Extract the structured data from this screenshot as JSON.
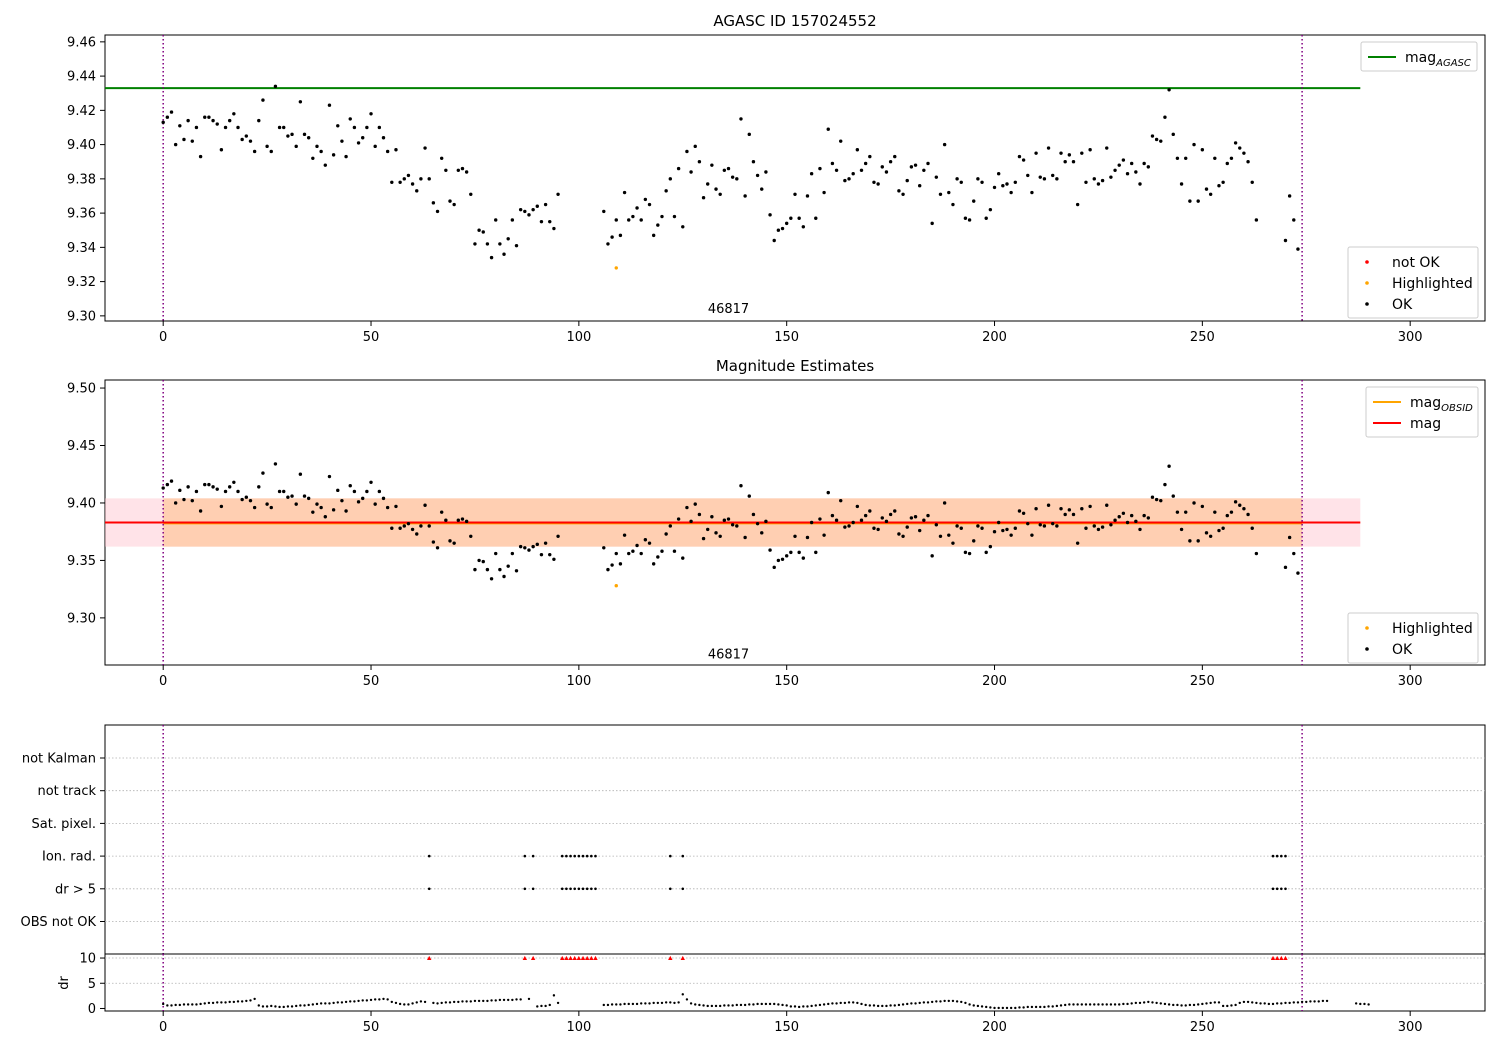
{
  "colors": {
    "ok": "#000000",
    "not_ok": "#ff0000",
    "highlighted": "#ffa500",
    "mag_agasc": "#008000",
    "mag_obsid": "#ffa500",
    "mag": "#ff0000",
    "band_mag": "#ffc0cb",
    "band_obsid": "#ffc8a0",
    "vline": "#800080",
    "grid": "#b0b0b0"
  },
  "chart_data": [
    {
      "id": "top",
      "type": "scatter",
      "title": "AGASC ID 157024552",
      "xlabel": "",
      "ylabel": "",
      "xlim": [
        -14,
        318
      ],
      "ylim": [
        9.297,
        9.464
      ],
      "xticks": [
        0,
        50,
        100,
        150,
        200,
        250,
        300
      ],
      "yticks": [
        9.3,
        9.32,
        9.34,
        9.36,
        9.38,
        9.4,
        9.42,
        9.44,
        9.46
      ],
      "ytick_decimals": 2,
      "obsid_label": "46817",
      "obsid_label_pos": [
        136,
        9.304
      ],
      "vlines": [
        0,
        274
      ],
      "hline": {
        "y": 9.433,
        "x": [
          -14,
          288
        ]
      },
      "legend_top": [
        {
          "label": "mag",
          "sub": "AGASC",
          "kind": "line",
          "color": "#008000"
        }
      ],
      "legend_bottom": [
        {
          "label": "not OK",
          "kind": "dot",
          "color": "#ff0000"
        },
        {
          "label": "Highlighted",
          "kind": "dot",
          "color": "#ffa500"
        },
        {
          "label": "OK",
          "kind": "dot",
          "color": "#000000"
        }
      ],
      "highlighted": [
        [
          109,
          9.328
        ]
      ]
    },
    {
      "id": "mid",
      "type": "scatter",
      "title": "Magnitude Estimates",
      "xlabel": "",
      "ylabel": "",
      "xlim": [
        -14,
        318
      ],
      "ylim": [
        9.259,
        9.507
      ],
      "xticks": [
        0,
        50,
        100,
        150,
        200,
        250,
        300
      ],
      "yticks": [
        9.3,
        9.35,
        9.4,
        9.45,
        9.5
      ],
      "ytick_decimals": 2,
      "obsid_label": "46817",
      "obsid_label_pos": [
        136,
        9.268
      ],
      "vlines": [
        0,
        274
      ],
      "mag": 9.383,
      "mag_obsid": 9.3825,
      "band_mag": {
        "lo": 9.362,
        "hi": 9.404,
        "x": [
          -14,
          288
        ]
      },
      "band_obsid": {
        "lo": 9.362,
        "hi": 9.404,
        "x": [
          0,
          274
        ]
      },
      "legend_top": [
        {
          "label": "mag",
          "sub": "OBSID",
          "kind": "line",
          "color": "#ffa500"
        },
        {
          "label": "mag",
          "kind": "line",
          "color": "#ff0000"
        }
      ],
      "legend_bottom": [
        {
          "label": "Highlighted",
          "kind": "dot",
          "color": "#ffa500"
        },
        {
          "label": "OK",
          "kind": "dot",
          "color": "#000000"
        }
      ],
      "highlighted": [
        [
          109,
          9.328
        ]
      ]
    },
    {
      "id": "flags",
      "type": "scatter",
      "xlim": [
        -14,
        318
      ],
      "vlines": [
        0,
        274
      ],
      "categories": [
        "OBS not OK",
        "dr > 5",
        "Ion. rad.",
        "Sat. pixel.",
        "not track",
        "not Kalman"
      ],
      "flagged": {
        "dr > 5": [
          64,
          87,
          89,
          96,
          97,
          98,
          99,
          100,
          101,
          102,
          103,
          104,
          122,
          125,
          267,
          268,
          269,
          270
        ],
        "Ion. rad.": [
          64,
          87,
          89,
          96,
          97,
          98,
          99,
          100,
          101,
          102,
          103,
          104,
          122,
          125,
          267,
          268,
          269,
          270
        ]
      }
    },
    {
      "id": "dr",
      "type": "scatter",
      "ylabel": "dr",
      "xlim": [
        -14,
        318
      ],
      "ylim": [
        -0.5,
        10.8
      ],
      "xticks": [
        0,
        50,
        100,
        150,
        200,
        250,
        300
      ],
      "yticks": [
        0,
        5,
        10
      ],
      "ytick_decimals": 0,
      "vlines": [
        0,
        274
      ],
      "clipped_marker_y": 10
    }
  ],
  "star": {
    "mags": [
      9.413,
      9.416,
      9.419,
      9.4,
      9.411,
      9.403,
      9.414,
      9.402,
      9.41,
      9.393,
      9.416,
      9.416,
      9.414,
      9.412,
      9.397,
      9.41,
      9.414,
      9.418,
      9.41,
      9.403,
      9.405,
      9.402,
      9.396,
      9.414,
      9.426,
      9.399,
      9.396,
      9.434,
      9.41,
      9.41,
      9.405,
      9.406,
      9.399,
      9.425,
      9.406,
      9.404,
      9.392,
      9.399,
      9.396,
      9.388,
      9.423,
      9.394,
      9.411,
      9.402,
      9.393,
      9.415,
      9.41,
      9.401,
      9.404,
      9.41,
      9.418,
      9.399,
      9.41,
      9.404,
      9.396,
      9.378,
      9.397,
      9.378,
      9.38,
      9.382,
      9.377,
      9.373,
      9.38,
      9.398,
      9.38,
      9.366,
      9.361,
      9.392,
      9.385,
      9.367,
      9.365,
      9.385,
      9.386,
      9.384,
      9.371,
      9.342,
      9.35,
      9.349,
      9.342,
      9.334,
      9.356,
      9.342,
      9.336,
      9.345,
      9.356,
      9.341,
      9.362,
      9.361,
      9.359,
      9.362,
      9.364,
      9.355,
      9.365,
      9.355,
      9.351,
      9.371,
      null,
      null,
      null,
      null,
      null,
      null,
      null,
      null,
      null,
      null,
      9.361,
      9.342,
      9.346,
      9.356,
      9.347,
      9.372,
      9.356,
      9.358,
      9.363,
      9.356,
      9.368,
      9.365,
      9.347,
      9.353,
      9.358,
      9.373,
      9.38,
      9.358,
      9.386,
      9.352,
      9.396,
      9.384,
      9.399,
      9.39,
      9.369,
      9.377,
      9.388,
      9.374,
      9.371,
      9.385,
      9.386,
      9.381,
      9.38,
      9.415,
      9.37,
      9.406,
      9.39,
      9.382,
      9.374,
      9.384,
      9.359,
      9.344,
      9.35,
      9.351,
      9.354,
      9.357,
      9.371,
      9.357,
      9.352,
      9.37,
      9.383,
      9.357,
      9.386,
      9.372,
      9.409,
      9.389,
      9.385,
      9.402,
      9.379,
      9.38,
      9.383,
      9.397,
      9.385,
      9.389,
      9.393,
      9.378,
      9.377,
      9.387,
      9.384,
      9.39,
      9.393,
      9.373,
      9.371,
      9.379,
      9.387,
      9.388,
      9.376,
      9.385,
      9.389,
      9.354,
      9.381,
      9.371,
      9.4,
      9.372,
      9.365,
      9.38,
      9.378,
      9.357,
      9.356,
      9.367,
      9.38,
      9.378,
      9.357,
      9.362,
      9.375,
      9.383,
      9.376,
      9.377,
      9.372,
      9.378,
      9.393,
      9.391,
      9.382,
      9.372,
      9.395,
      9.381,
      9.38,
      9.398,
      9.382,
      9.38,
      9.395,
      9.39,
      9.394,
      9.39,
      9.365,
      9.395,
      9.378,
      9.397,
      9.38,
      9.377,
      9.379,
      9.398,
      9.381,
      9.385,
      9.388,
      9.391,
      9.383,
      9.389,
      9.384,
      9.377,
      9.389,
      9.387,
      9.405,
      9.403,
      9.402,
      9.416,
      9.432,
      9.406,
      9.392,
      9.377,
      9.392,
      9.367,
      9.4,
      9.367,
      9.397,
      9.374,
      9.371,
      9.392,
      9.376,
      9.378,
      9.389,
      9.392,
      9.401,
      9.398,
      9.395,
      9.39,
      9.378,
      9.356,
      null,
      null,
      null,
      null,
      null,
      null,
      9.344,
      9.37,
      9.356,
      9.339
    ],
    "dr": [
      0.9,
      0.6,
      0.6,
      0.7,
      0.7,
      0.8,
      0.8,
      0.8,
      0.8,
      0.9,
      1.0,
      1.1,
      1.1,
      1.2,
      1.2,
      1.2,
      1.3,
      1.3,
      1.4,
      1.4,
      1.5,
      1.6,
      1.9,
      0.6,
      0.4,
      0.4,
      0.5,
      0.4,
      0.3,
      0.3,
      0.4,
      0.4,
      0.5,
      0.6,
      0.6,
      0.7,
      0.8,
      0.9,
      1.0,
      1.0,
      1.0,
      1.1,
      1.2,
      1.2,
      1.3,
      1.4,
      1.4,
      1.5,
      1.6,
      1.6,
      1.7,
      1.8,
      1.8,
      1.9,
      1.8,
      1.3,
      1.1,
      0.9,
      0.8,
      0.8,
      1.0,
      1.2,
      1.4,
      1.3,
      null,
      1.1,
      1.0,
      1.1,
      1.2,
      1.2,
      1.3,
      1.3,
      1.4,
      1.4,
      1.4,
      1.5,
      1.5,
      1.5,
      1.5,
      1.6,
      1.6,
      1.7,
      1.7,
      1.7,
      1.7,
      1.8,
      1.8,
      null,
      1.9,
      null,
      0.4,
      0.5,
      0.5,
      0.7,
      2.6,
      1.1,
      null,
      null,
      null,
      null,
      null,
      null,
      null,
      null,
      null,
      null,
      0.7,
      0.7,
      0.8,
      0.8,
      0.8,
      0.9,
      0.9,
      0.9,
      0.9,
      1.0,
      1.0,
      1.0,
      1.1,
      1.1,
      1.1,
      1.2,
      1.2,
      1.1,
      1.2,
      2.8,
      1.8,
      1.0,
      0.8,
      0.7,
      0.6,
      0.5,
      0.5,
      0.5,
      0.5,
      0.6,
      0.6,
      0.6,
      0.7,
      0.7,
      0.7,
      0.8,
      0.8,
      0.9,
      0.9,
      0.9,
      0.9,
      0.9,
      0.8,
      0.7,
      0.6,
      0.4,
      0.4,
      0.3,
      0.4,
      0.4,
      0.5,
      0.6,
      0.7,
      0.8,
      0.9,
      1.0,
      1.0,
      1.1,
      1.1,
      1.2,
      1.2,
      1.1,
      0.9,
      0.7,
      0.6,
      0.6,
      0.5,
      0.5,
      0.5,
      0.6,
      0.6,
      0.7,
      0.8,
      0.9,
      1.0,
      1.0,
      1.1,
      1.2,
      1.2,
      1.3,
      1.4,
      1.4,
      1.5,
      1.5,
      1.5,
      1.4,
      1.3,
      1.1,
      0.8,
      0.6,
      0.5,
      0.4,
      0.3,
      0.2,
      0.1,
      0.1,
      0.1,
      0.1,
      0.1,
      0.1,
      0.2,
      0.2,
      0.3,
      0.3,
      0.3,
      0.3,
      0.3,
      0.4,
      0.4,
      0.5,
      0.6,
      0.7,
      0.8,
      0.8,
      0.8,
      0.8,
      0.8,
      0.8,
      0.8,
      0.8,
      0.8,
      0.8,
      0.8,
      0.8,
      0.8,
      0.9,
      0.9,
      1.0,
      1.1,
      1.1,
      1.2,
      1.3,
      1.2,
      1.1,
      1.0,
      0.9,
      0.8,
      0.7,
      0.7,
      0.6,
      0.6,
      0.7,
      0.7,
      0.8,
      0.9,
      1.0,
      1.1,
      1.2,
      1.2,
      0.5,
      0.5,
      0.6,
      0.7,
      1.1,
      1.3,
      1.3,
      1.2,
      1.1,
      1.0,
      1.0,
      0.9,
      0.9,
      1.0,
      1.0,
      1.1,
      1.1,
      1.2,
      1.2,
      1.3,
      1.3,
      1.4,
      1.4,
      1.4,
      1.5,
      1.5,
      null,
      null,
      null,
      null,
      null,
      null,
      1.0,
      0.9,
      0.9,
      0.8
    ],
    "dr_clipped_x": [
      64,
      87,
      89,
      96,
      97,
      98,
      99,
      100,
      101,
      102,
      103,
      104,
      122,
      125,
      267,
      268,
      269,
      270
    ]
  }
}
